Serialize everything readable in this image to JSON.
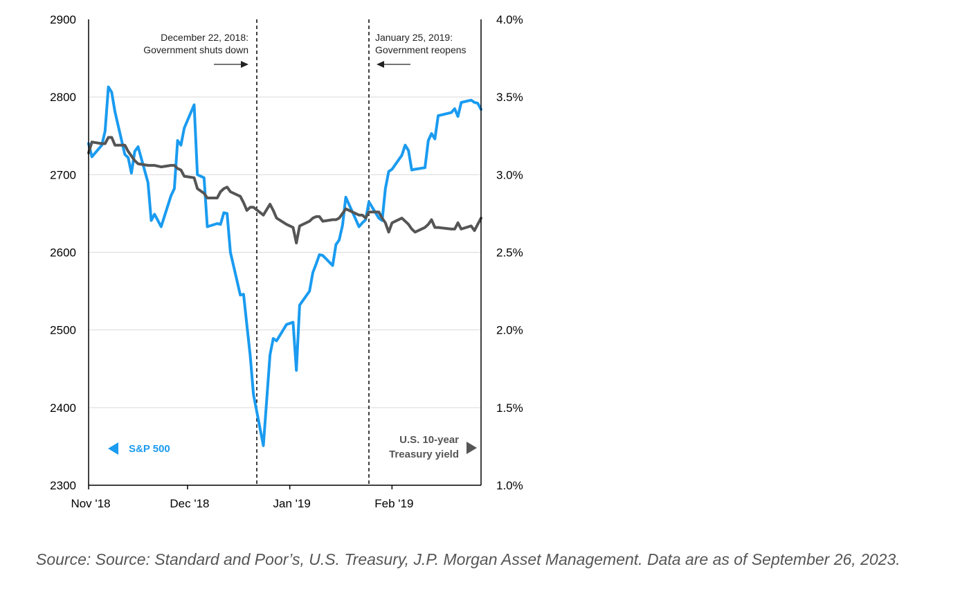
{
  "chart_data": {
    "type": "line",
    "x": [
      "2018-11-01",
      "2018-11-02",
      "2018-11-05",
      "2018-11-06",
      "2018-11-07",
      "2018-11-08",
      "2018-11-09",
      "2018-11-12",
      "2018-11-13",
      "2018-11-14",
      "2018-11-15",
      "2018-11-16",
      "2018-11-19",
      "2018-11-20",
      "2018-11-21",
      "2018-11-23",
      "2018-11-26",
      "2018-11-27",
      "2018-11-28",
      "2018-11-29",
      "2018-11-30",
      "2018-12-03",
      "2018-12-04",
      "2018-12-06",
      "2018-12-07",
      "2018-12-10",
      "2018-12-11",
      "2018-12-12",
      "2018-12-13",
      "2018-12-14",
      "2018-12-17",
      "2018-12-18",
      "2018-12-19",
      "2018-12-20",
      "2018-12-21",
      "2018-12-24",
      "2018-12-26",
      "2018-12-27",
      "2018-12-28",
      "2018-12-31",
      "2019-01-02",
      "2019-01-03",
      "2019-01-04",
      "2019-01-07",
      "2019-01-08",
      "2019-01-09",
      "2019-01-10",
      "2019-01-11",
      "2019-01-14",
      "2019-01-15",
      "2019-01-16",
      "2019-01-17",
      "2019-01-18",
      "2019-01-22",
      "2019-01-23",
      "2019-01-24",
      "2019-01-25",
      "2019-01-28",
      "2019-01-29",
      "2019-01-30",
      "2019-01-31",
      "2019-02-01",
      "2019-02-04",
      "2019-02-05",
      "2019-02-06",
      "2019-02-07",
      "2019-02-08",
      "2019-02-11",
      "2019-02-12",
      "2019-02-13",
      "2019-02-14",
      "2019-02-15",
      "2019-02-19",
      "2019-02-20",
      "2019-02-21",
      "2019-02-22",
      "2019-02-25",
      "2019-02-26",
      "2019-02-27",
      "2019-02-28"
    ],
    "series": [
      {
        "name": "S&P 500",
        "axis": "left",
        "color": "#1a9bf0",
        "values": [
          2740,
          2723,
          2738,
          2756,
          2813,
          2806,
          2781,
          2726,
          2722,
          2702,
          2730,
          2736,
          2690,
          2641,
          2649,
          2633,
          2673,
          2682,
          2744,
          2738,
          2760,
          2790,
          2700,
          2696,
          2633,
          2637,
          2636,
          2651,
          2650,
          2600,
          2545,
          2546,
          2506,
          2467,
          2417,
          2351,
          2468,
          2489,
          2486,
          2507,
          2510,
          2448,
          2532,
          2550,
          2574,
          2585,
          2597,
          2596,
          2583,
          2610,
          2616,
          2635,
          2671,
          2633,
          2638,
          2642,
          2665,
          2644,
          2641,
          2682,
          2704,
          2707,
          2725,
          2738,
          2731,
          2706,
          2707,
          2709,
          2744,
          2753,
          2746,
          2776,
          2780,
          2785,
          2775,
          2793,
          2796,
          2793,
          2792,
          2784
        ]
      },
      {
        "name": "U.S. 10-year Treasury yield",
        "axis": "right",
        "color": "#555555",
        "values": [
          3.14,
          3.21,
          3.2,
          3.2,
          3.24,
          3.24,
          3.19,
          3.19,
          3.15,
          3.12,
          3.09,
          3.07,
          3.06,
          3.06,
          3.06,
          3.05,
          3.06,
          3.06,
          3.04,
          3.03,
          2.99,
          2.98,
          2.91,
          2.88,
          2.85,
          2.85,
          2.89,
          2.91,
          2.92,
          2.89,
          2.86,
          2.82,
          2.77,
          2.79,
          2.79,
          2.74,
          2.81,
          2.77,
          2.72,
          2.68,
          2.66,
          2.56,
          2.67,
          2.7,
          2.72,
          2.73,
          2.73,
          2.7,
          2.71,
          2.71,
          2.72,
          2.75,
          2.78,
          2.74,
          2.74,
          2.72,
          2.76,
          2.76,
          2.72,
          2.69,
          2.63,
          2.69,
          2.72,
          2.7,
          2.68,
          2.65,
          2.63,
          2.66,
          2.68,
          2.71,
          2.66,
          2.66,
          2.65,
          2.65,
          2.69,
          2.65,
          2.67,
          2.64,
          2.68,
          2.72
        ]
      }
    ],
    "x_ticks": [
      "Nov '18",
      "Dec '18",
      "Jan '19",
      "Feb '19"
    ],
    "x_tick_dates": [
      "2018-11-01",
      "2018-12-01",
      "2019-01-01",
      "2019-02-01"
    ],
    "x_range": [
      "2018-11-01",
      "2019-02-28"
    ],
    "y_left": {
      "range": [
        2300,
        2900
      ],
      "ticks": [
        "2300",
        "2400",
        "2500",
        "2600",
        "2700",
        "2800",
        "2900"
      ]
    },
    "y_right": {
      "range": [
        1.0,
        4.0
      ],
      "ticks": [
        "1.0%",
        "1.5%",
        "2.0%",
        "2.5%",
        "3.0%",
        "3.5%",
        "4.0%"
      ]
    },
    "grid": "horizontal",
    "annotations": [
      {
        "date": "2018-12-22",
        "line1": "December 22, 2018:",
        "line2": "Government shuts down",
        "arrow": "right"
      },
      {
        "date": "2019-01-25",
        "line1": "January 25, 2019:",
        "line2": "Government reopens",
        "arrow": "left"
      }
    ],
    "legend": {
      "left_label": "S&P 500",
      "right_label_line1": "U.S. 10-year",
      "right_label_line2": "Treasury yield"
    }
  },
  "source_text": "Source: Source: Standard and Poor’s, U.S. Treasury, J.P. Morgan Asset Management. Data are as of September 26, 2023."
}
